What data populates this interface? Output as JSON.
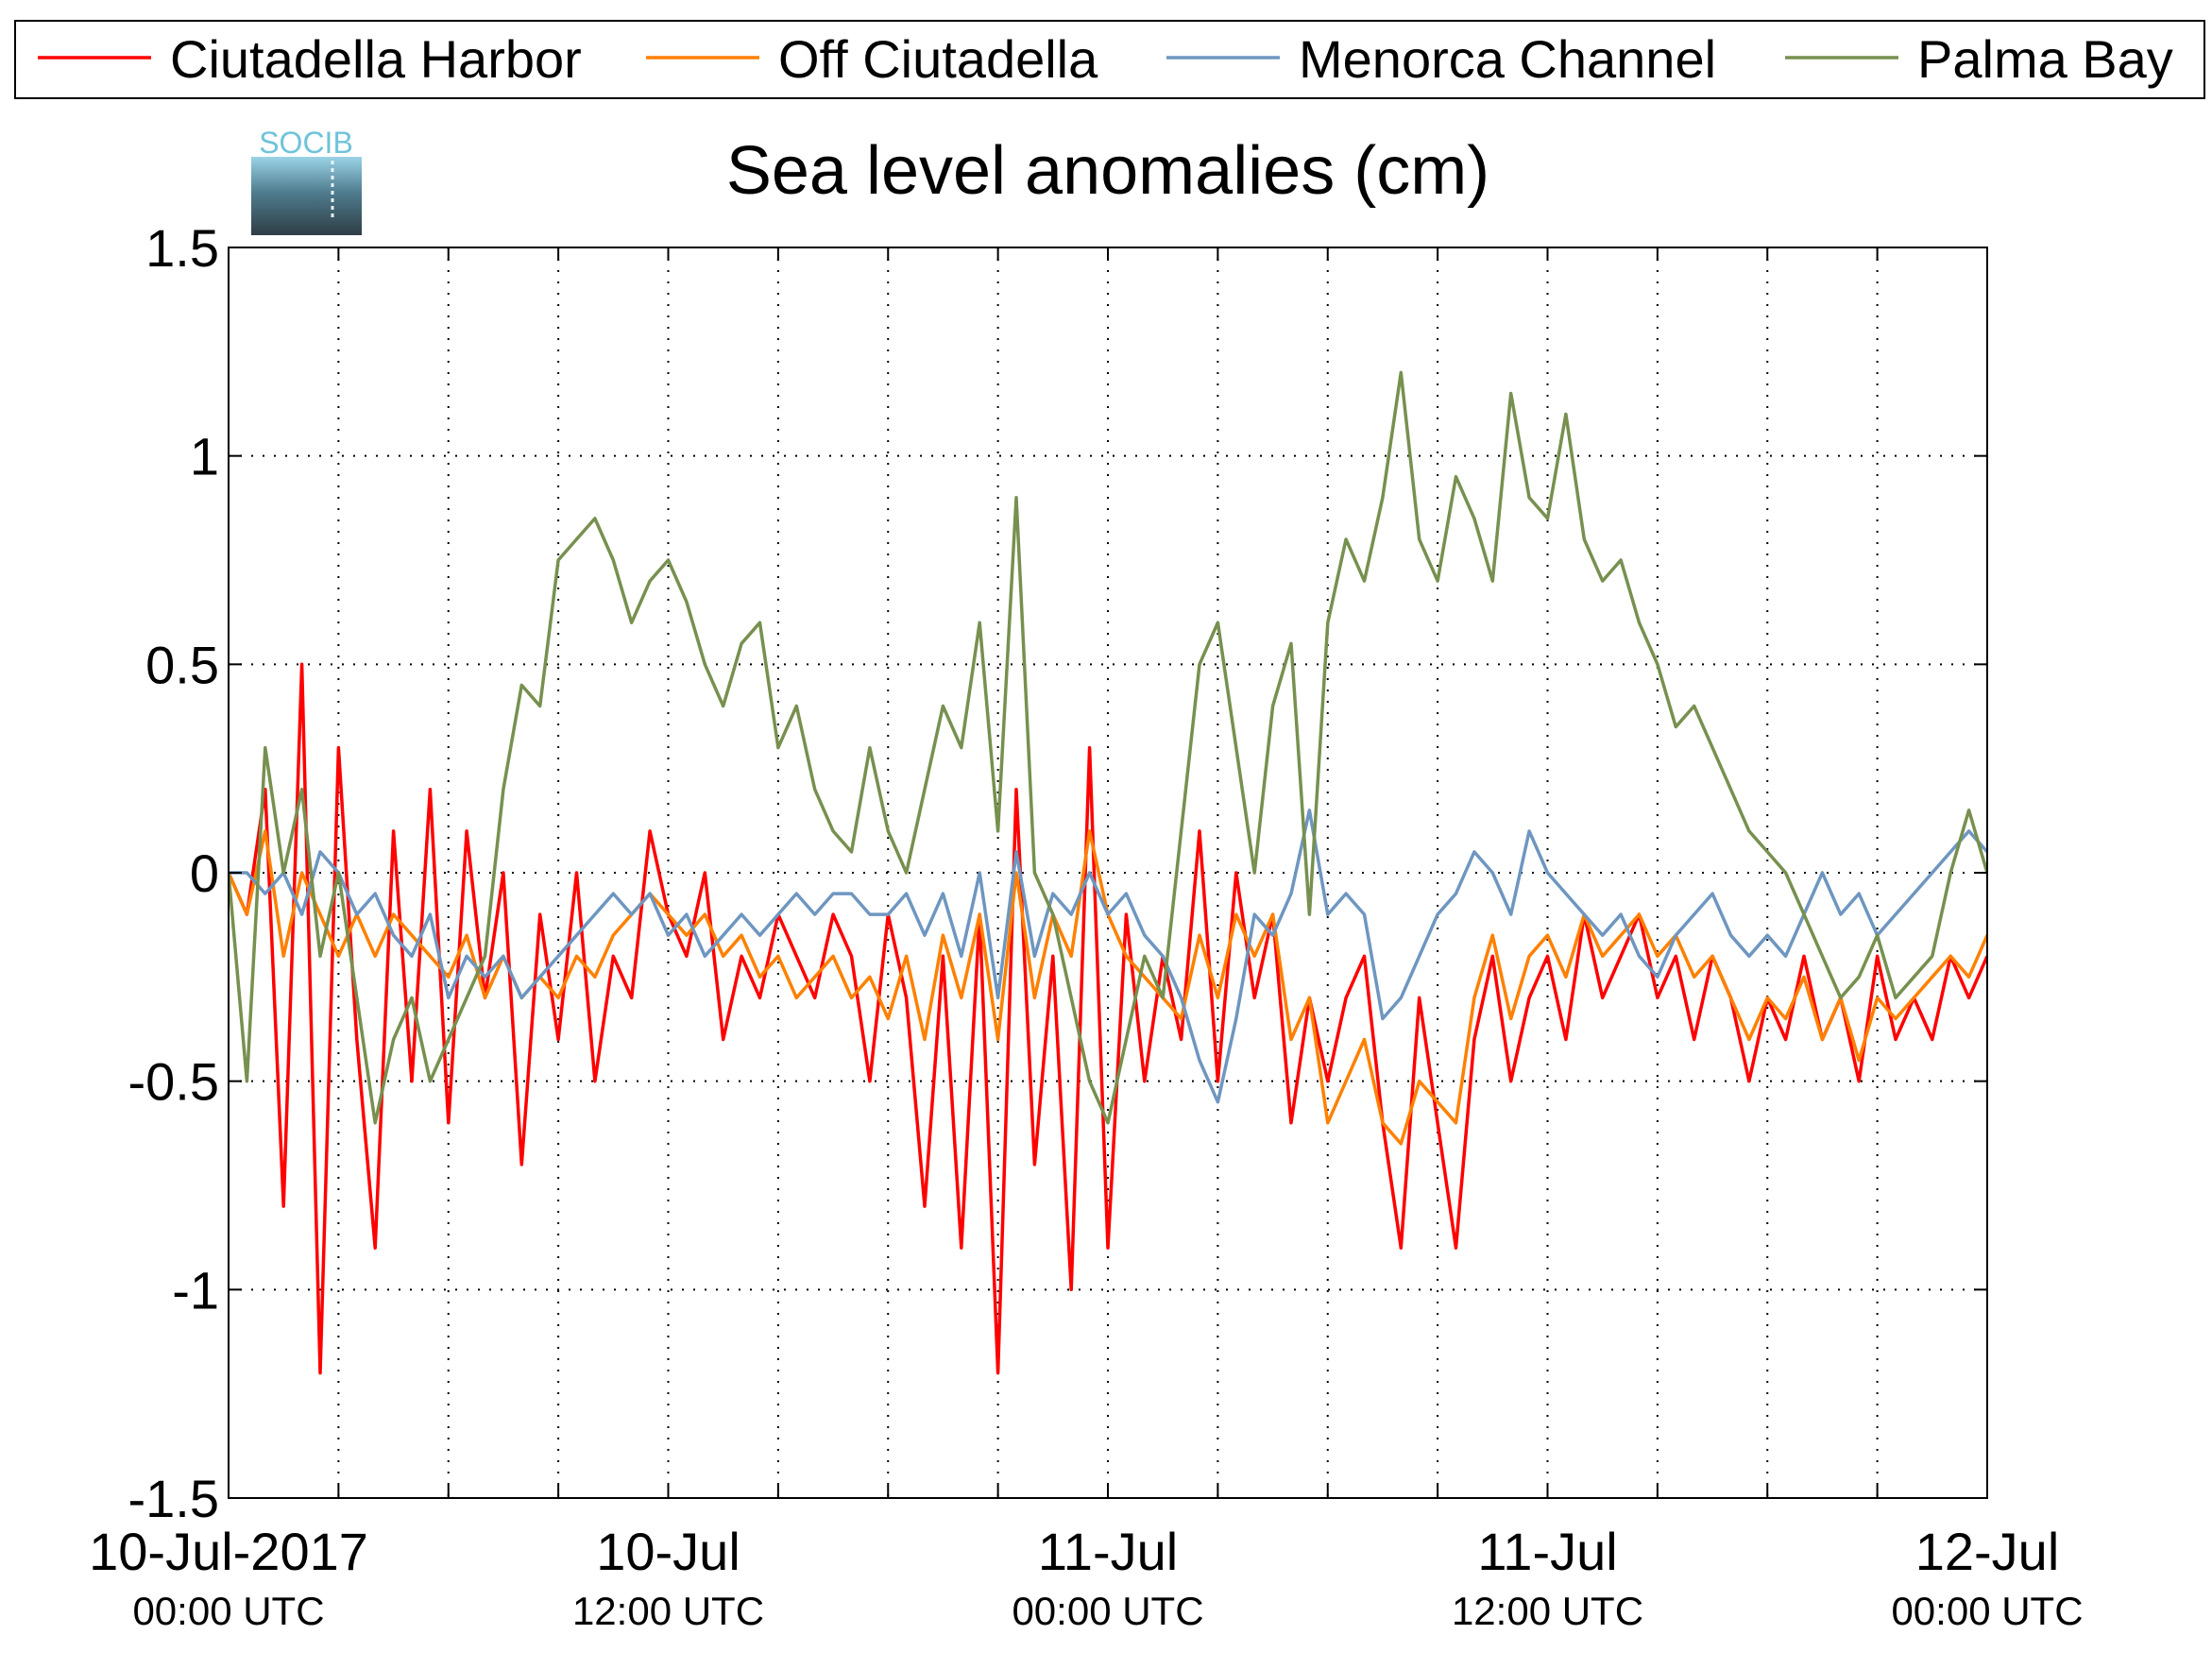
{
  "chart_data": {
    "type": "line",
    "title": "Sea level anomalies (cm)",
    "logo_text": "SOCIB",
    "xlabel": "",
    "ylabel": "",
    "x_unit": "hours since 10-Jul-2017 00:00 UTC",
    "xlim": [
      0,
      48
    ],
    "ylim": [
      -1.5,
      1.5
    ],
    "y_ticks": [
      1.5,
      1,
      0.5,
      0,
      -0.5,
      -1,
      -1.5
    ],
    "y_tick_labels": [
      "1.5",
      "1",
      "0.5",
      "0",
      "-0.5",
      "-1",
      "-1.5"
    ],
    "x_ticks": [
      {
        "x": 0,
        "line1": "10-Jul-2017",
        "line2": "00:00 UTC"
      },
      {
        "x": 12,
        "line1": "10-Jul",
        "line2": "12:00 UTC"
      },
      {
        "x": 24,
        "line1": "11-Jul",
        "line2": "00:00 UTC"
      },
      {
        "x": 36,
        "line1": "11-Jul",
        "line2": "12:00 UTC"
      },
      {
        "x": 48,
        "line1": "12-Jul",
        "line2": "00:00 UTC"
      }
    ],
    "grid": true,
    "legend_position": "top",
    "series": [
      {
        "name": "Ciutadella Harbor",
        "color": "#ff0000",
        "x": [
          0,
          0.5,
          1,
          1.5,
          2,
          2.5,
          3,
          3.5,
          4,
          4.5,
          5,
          5.5,
          6,
          6.5,
          7,
          7.5,
          8,
          8.5,
          9,
          9.5,
          10,
          10.5,
          11,
          11.5,
          12,
          12.5,
          13,
          13.5,
          14,
          14.5,
          15,
          15.5,
          16,
          16.5,
          17,
          17.5,
          18,
          18.5,
          19,
          19.5,
          20,
          20.5,
          21,
          21.5,
          22,
          22.5,
          23,
          23.5,
          24,
          24.5,
          25,
          25.5,
          26,
          26.5,
          27,
          27.5,
          28,
          28.5,
          29,
          29.5,
          30,
          30.5,
          31,
          31.5,
          32,
          32.5,
          33,
          33.5,
          34,
          34.5,
          35,
          35.5,
          36,
          36.5,
          37,
          37.5,
          38,
          38.5,
          39,
          39.5,
          40,
          40.5,
          41,
          41.5,
          42,
          42.5,
          43,
          43.5,
          44,
          44.5,
          45,
          45.5,
          46,
          46.5,
          47,
          47.5,
          48
        ],
        "y": [
          0,
          -0.1,
          0.2,
          -0.8,
          0.5,
          -1.2,
          0.3,
          -0.4,
          -0.9,
          0.1,
          -0.5,
          0.2,
          -0.6,
          0.1,
          -0.3,
          0.0,
          -0.7,
          -0.1,
          -0.4,
          0.0,
          -0.5,
          -0.2,
          -0.3,
          0.1,
          -0.1,
          -0.2,
          0.0,
          -0.4,
          -0.2,
          -0.3,
          -0.1,
          -0.2,
          -0.3,
          -0.1,
          -0.2,
          -0.5,
          -0.1,
          -0.3,
          -0.8,
          -0.2,
          -0.9,
          -0.1,
          -1.2,
          0.2,
          -0.7,
          -0.2,
          -1.0,
          0.3,
          -0.9,
          -0.1,
          -0.5,
          -0.2,
          -0.4,
          0.1,
          -0.5,
          0.0,
          -0.3,
          -0.1,
          -0.6,
          -0.3,
          -0.5,
          -0.3,
          -0.2,
          -0.6,
          -0.9,
          -0.3,
          -0.6,
          -0.9,
          -0.4,
          -0.2,
          -0.5,
          -0.3,
          -0.2,
          -0.4,
          -0.1,
          -0.3,
          -0.2,
          -0.1,
          -0.3,
          -0.2,
          -0.4,
          -0.2,
          -0.3,
          -0.5,
          -0.3,
          -0.4,
          -0.2,
          -0.4,
          -0.3,
          -0.5,
          -0.2,
          -0.4,
          -0.3,
          -0.4,
          -0.2,
          -0.3,
          -0.2
        ]
      },
      {
        "name": "Off Ciutadella",
        "color": "#ff8000",
        "x": [
          0,
          0.5,
          1,
          1.5,
          2,
          2.5,
          3,
          3.5,
          4,
          4.5,
          5,
          5.5,
          6,
          6.5,
          7,
          7.5,
          8,
          8.5,
          9,
          9.5,
          10,
          10.5,
          11,
          11.5,
          12,
          12.5,
          13,
          13.5,
          14,
          14.5,
          15,
          15.5,
          16,
          16.5,
          17,
          17.5,
          18,
          18.5,
          19,
          19.5,
          20,
          20.5,
          21,
          21.5,
          22,
          22.5,
          23,
          23.5,
          24,
          24.5,
          25,
          25.5,
          26,
          26.5,
          27,
          27.5,
          28,
          28.5,
          29,
          29.5,
          30,
          30.5,
          31,
          31.5,
          32,
          32.5,
          33,
          33.5,
          34,
          34.5,
          35,
          35.5,
          36,
          36.5,
          37,
          37.5,
          38,
          38.5,
          39,
          39.5,
          40,
          40.5,
          41,
          41.5,
          42,
          42.5,
          43,
          43.5,
          44,
          44.5,
          45,
          45.5,
          46,
          46.5,
          47,
          47.5,
          48
        ],
        "y": [
          0,
          -0.1,
          0.1,
          -0.2,
          0.0,
          -0.1,
          -0.2,
          -0.1,
          -0.2,
          -0.1,
          -0.15,
          -0.2,
          -0.25,
          -0.15,
          -0.3,
          -0.2,
          -0.3,
          -0.25,
          -0.3,
          -0.2,
          -0.25,
          -0.15,
          -0.1,
          -0.05,
          -0.1,
          -0.15,
          -0.1,
          -0.2,
          -0.15,
          -0.25,
          -0.2,
          -0.3,
          -0.25,
          -0.2,
          -0.3,
          -0.25,
          -0.35,
          -0.2,
          -0.4,
          -0.15,
          -0.3,
          -0.1,
          -0.4,
          0.0,
          -0.3,
          -0.1,
          -0.2,
          0.1,
          -0.1,
          -0.2,
          -0.25,
          -0.3,
          -0.35,
          -0.15,
          -0.3,
          -0.1,
          -0.2,
          -0.1,
          -0.4,
          -0.3,
          -0.6,
          -0.5,
          -0.4,
          -0.6,
          -0.65,
          -0.5,
          -0.55,
          -0.6,
          -0.3,
          -0.15,
          -0.35,
          -0.2,
          -0.15,
          -0.25,
          -0.1,
          -0.2,
          -0.15,
          -0.1,
          -0.2,
          -0.15,
          -0.25,
          -0.2,
          -0.3,
          -0.4,
          -0.3,
          -0.35,
          -0.25,
          -0.4,
          -0.3,
          -0.45,
          -0.3,
          -0.35,
          -0.3,
          -0.25,
          -0.2,
          -0.25,
          -0.15
        ]
      },
      {
        "name": "Menorca Channel",
        "color": "#6e96c0",
        "x": [
          0,
          0.5,
          1,
          1.5,
          2,
          2.5,
          3,
          3.5,
          4,
          4.5,
          5,
          5.5,
          6,
          6.5,
          7,
          7.5,
          8,
          8.5,
          9,
          9.5,
          10,
          10.5,
          11,
          11.5,
          12,
          12.5,
          13,
          13.5,
          14,
          14.5,
          15,
          15.5,
          16,
          16.5,
          17,
          17.5,
          18,
          18.5,
          19,
          19.5,
          20,
          20.5,
          21,
          21.5,
          22,
          22.5,
          23,
          23.5,
          24,
          24.5,
          25,
          25.5,
          26,
          26.5,
          27,
          27.5,
          28,
          28.5,
          29,
          29.5,
          30,
          30.5,
          31,
          31.5,
          32,
          32.5,
          33,
          33.5,
          34,
          34.5,
          35,
          35.5,
          36,
          36.5,
          37,
          37.5,
          38,
          38.5,
          39,
          39.5,
          40,
          40.5,
          41,
          41.5,
          42,
          42.5,
          43,
          43.5,
          44,
          44.5,
          45,
          45.5,
          46,
          46.5,
          47,
          47.5,
          48
        ],
        "y": [
          0,
          0.0,
          -0.05,
          0.0,
          -0.1,
          0.05,
          0.0,
          -0.1,
          -0.05,
          -0.15,
          -0.2,
          -0.1,
          -0.3,
          -0.2,
          -0.25,
          -0.2,
          -0.3,
          -0.25,
          -0.2,
          -0.15,
          -0.1,
          -0.05,
          -0.1,
          -0.05,
          -0.15,
          -0.1,
          -0.2,
          -0.15,
          -0.1,
          -0.15,
          -0.1,
          -0.05,
          -0.1,
          -0.05,
          -0.05,
          -0.1,
          -0.1,
          -0.05,
          -0.15,
          -0.05,
          -0.2,
          0.0,
          -0.3,
          0.05,
          -0.2,
          -0.05,
          -0.1,
          0.0,
          -0.1,
          -0.05,
          -0.15,
          -0.2,
          -0.3,
          -0.45,
          -0.55,
          -0.35,
          -0.1,
          -0.15,
          -0.05,
          0.15,
          -0.1,
          -0.05,
          -0.1,
          -0.35,
          -0.3,
          -0.2,
          -0.1,
          -0.05,
          0.05,
          0.0,
          -0.1,
          0.1,
          0.0,
          -0.05,
          -0.1,
          -0.15,
          -0.1,
          -0.2,
          -0.25,
          -0.15,
          -0.1,
          -0.05,
          -0.15,
          -0.2,
          -0.15,
          -0.2,
          -0.1,
          0.0,
          -0.1,
          -0.05,
          -0.15,
          -0.1,
          -0.05,
          0.0,
          0.05,
          0.1,
          0.05
        ]
      },
      {
        "name": "Palma Bay",
        "color": "#77904f",
        "x": [
          0,
          0.5,
          1,
          1.5,
          2,
          2.5,
          3,
          3.5,
          4,
          4.5,
          5,
          5.5,
          6,
          6.5,
          7,
          7.5,
          8,
          8.5,
          9,
          9.5,
          10,
          10.5,
          11,
          11.5,
          12,
          12.5,
          13,
          13.5,
          14,
          14.5,
          15,
          15.5,
          16,
          16.5,
          17,
          17.5,
          18,
          18.5,
          19,
          19.5,
          20,
          20.5,
          21,
          21.5,
          22,
          22.5,
          23,
          23.5,
          24,
          24.5,
          25,
          25.5,
          26,
          26.5,
          27,
          27.5,
          28,
          28.5,
          29,
          29.5,
          30,
          30.5,
          31,
          31.5,
          32,
          32.5,
          33,
          33.5,
          34,
          34.5,
          35,
          35.5,
          36,
          36.5,
          37,
          37.5,
          38,
          38.5,
          39,
          39.5,
          40,
          40.5,
          41,
          41.5,
          42,
          42.5,
          43,
          43.5,
          44,
          44.5,
          45,
          45.5,
          46,
          46.5,
          47,
          47.5,
          48
        ],
        "y": [
          0,
          -0.5,
          0.3,
          0.0,
          0.2,
          -0.2,
          0.0,
          -0.3,
          -0.6,
          -0.4,
          -0.3,
          -0.5,
          -0.4,
          -0.3,
          -0.2,
          0.2,
          0.45,
          0.4,
          0.75,
          0.8,
          0.85,
          0.75,
          0.6,
          0.7,
          0.75,
          0.65,
          0.5,
          0.4,
          0.55,
          0.6,
          0.3,
          0.4,
          0.2,
          0.1,
          0.05,
          0.3,
          0.1,
          0.0,
          0.2,
          0.4,
          0.3,
          0.6,
          0.1,
          0.9,
          0.0,
          -0.1,
          -0.3,
          -0.5,
          -0.6,
          -0.4,
          -0.2,
          -0.3,
          0.1,
          0.5,
          0.6,
          0.3,
          0.0,
          0.4,
          0.55,
          -0.1,
          0.6,
          0.8,
          0.7,
          0.9,
          1.2,
          0.8,
          0.7,
          0.95,
          0.85,
          0.7,
          1.15,
          0.9,
          0.85,
          1.1,
          0.8,
          0.7,
          0.75,
          0.6,
          0.5,
          0.35,
          0.4,
          0.3,
          0.2,
          0.1,
          0.05,
          0.0,
          -0.1,
          -0.2,
          -0.3,
          -0.25,
          -0.15,
          -0.3,
          -0.25,
          -0.2,
          0.0,
          0.15,
          0.0
        ]
      }
    ]
  }
}
